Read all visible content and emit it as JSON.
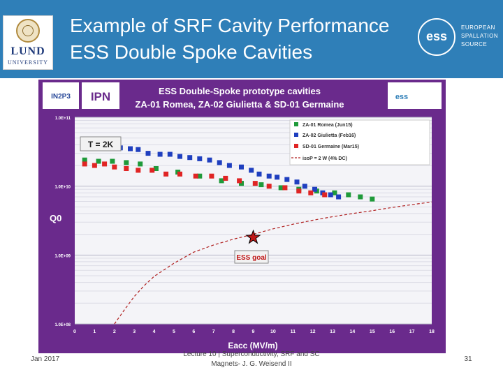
{
  "header": {
    "title_line1": "Example of SRF Cavity Performance",
    "title_line2": "ESS Double Spoke Cavities",
    "lund_logo": {
      "name": "LUND",
      "sub": "UNIVERSITY"
    },
    "ess_logo": {
      "mark": "ess",
      "line1": "EUROPEAN",
      "line2": "SPALLATION",
      "line3": "SOURCE"
    }
  },
  "colors": {
    "header_bg": "#2f7fb8",
    "chart_bg": "#6a2a8c",
    "romea": "#1f9a3a",
    "giulietta": "#1f3fbf",
    "germaine": "#e02424",
    "isop": "#b02020"
  },
  "chart_data": {
    "type": "scatter",
    "title": "ESS Double-Spoke prototype cavities",
    "subtitle": "ZA-01 Romea, ZA-02 Giulietta & SD-01 Germaine",
    "logos": [
      "IN2P3",
      "IPN",
      "ess"
    ],
    "xlabel": "Eacc (MV/m)",
    "ylabel": "Q0",
    "xlim": [
      0,
      18
    ],
    "ylim": [
      100000000,
      100000000000
    ],
    "yscale": "log",
    "x_ticks": [
      "0",
      "1",
      "2",
      "3",
      "4",
      "5",
      "6",
      "7",
      "8",
      "9",
      "10",
      "11",
      "12",
      "13",
      "14",
      "15",
      "16",
      "17",
      "18"
    ],
    "y_ticks": [
      "1.0E+11",
      "1.0E+10",
      "1.0E+09",
      "1.0E+08"
    ],
    "grid": true,
    "legend_position": "top-right",
    "annotations": {
      "temperature": "T = 2K",
      "goal_label": "ESS goal",
      "goal_point": {
        "x": 9,
        "y": 1800000000
      }
    },
    "series": [
      {
        "name": "ZA-01 Romea (Jun15)",
        "marker": "square",
        "color": "#1f9a3a",
        "x": [
          0.5,
          1.2,
          1.9,
          2.6,
          3.3,
          4.1,
          5.2,
          6.3,
          7.4,
          8.4,
          9.4,
          10.4,
          11.3,
          12.2,
          13.1,
          13.8,
          14.4,
          15.0
        ],
        "y": [
          24000000000,
          23000000000,
          23000000000,
          22000000000,
          21000000000,
          18000000000,
          16000000000,
          14000000000,
          12000000000,
          11000000000,
          10500000000,
          9500000000,
          9000000000,
          8500000000,
          8000000000,
          7500000000,
          7000000000,
          6500000000
        ]
      },
      {
        "name": "ZA-02 Giulietta (Feb16)",
        "marker": "square",
        "color": "#1f3fbf",
        "x": [
          0.5,
          0.8,
          1.3,
          1.8,
          2.3,
          2.8,
          3.2,
          3.7,
          4.3,
          4.8,
          5.3,
          5.8,
          6.3,
          6.8,
          7.3,
          7.8,
          8.4,
          8.9,
          9.3,
          9.8,
          10.2,
          10.7,
          11.2,
          11.6,
          12.1,
          12.5,
          12.9,
          13.3
        ],
        "y": [
          40000000000,
          37000000000,
          36000000000,
          36000000000,
          36000000000,
          35000000000,
          34000000000,
          30000000000,
          29000000000,
          29000000000,
          27000000000,
          26000000000,
          25000000000,
          24000000000,
          22000000000,
          20000000000,
          19000000000,
          17000000000,
          15000000000,
          14000000000,
          13500000000,
          12500000000,
          11500000000,
          10000000000,
          9000000000,
          8000000000,
          7500000000,
          7000000000
        ]
      },
      {
        "name": "SD-01 Germaine (Mar15)",
        "marker": "square",
        "color": "#e02424",
        "x": [
          0.5,
          1.0,
          1.5,
          2.0,
          2.6,
          3.2,
          3.9,
          4.6,
          5.3,
          6.1,
          6.9,
          7.6,
          8.3,
          9.1,
          9.8,
          10.6,
          11.3,
          11.9,
          12.6
        ],
        "y": [
          21000000000,
          20000000000,
          21000000000,
          19000000000,
          18000000000,
          17000000000,
          17000000000,
          15000000000,
          15000000000,
          14000000000,
          14000000000,
          13000000000,
          12000000000,
          11000000000,
          10000000000,
          9500000000,
          8500000000,
          8000000000,
          7500000000
        ]
      },
      {
        "name": "isoP = 2 W (4% DC)",
        "marker": "dashed-line",
        "color": "#b02020",
        "x": [
          2.0,
          2.5,
          3.0,
          3.5,
          4.0,
          5.0,
          6.0,
          7.0,
          8.0,
          9.0,
          10.0,
          11.0,
          12.0,
          13.0,
          14.0,
          15.0,
          16.0,
          17.0,
          18.0
        ],
        "y": [
          90000000,
          160000000,
          250000000,
          360000000,
          490000000,
          760000000,
          1100000000,
          1400000000,
          1700000000,
          2000000000,
          2400000000,
          2800000000,
          3200000000,
          3600000000,
          4000000000,
          4400000000,
          4900000000,
          5400000000,
          5900000000
        ]
      }
    ]
  },
  "footer": {
    "date": "Jan 2017",
    "lecture_line1": "Lecture 10 | Superconductivity, SRF and SC",
    "lecture_line2": "Magnets- J. G. Weisend II",
    "page": "31"
  }
}
